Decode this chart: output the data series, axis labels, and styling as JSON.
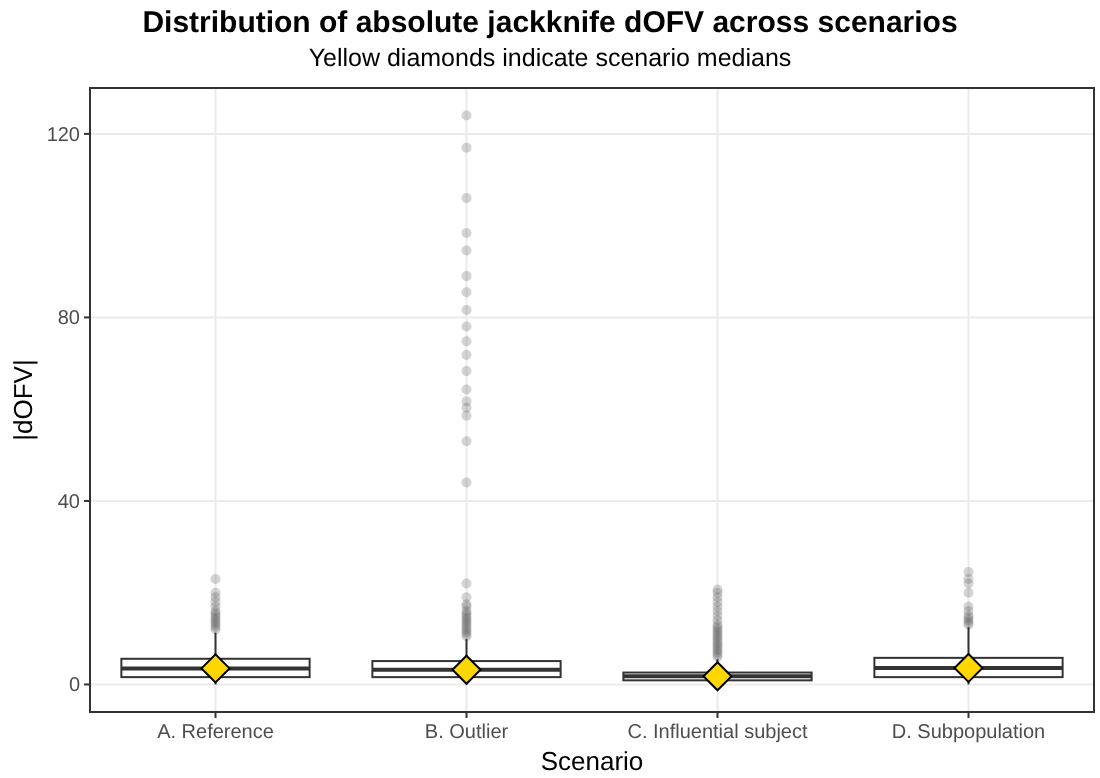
{
  "chart_data": {
    "type": "box",
    "title": "Distribution of absolute jackknife dOFV across scenarios",
    "subtitle": "Yellow diamonds indicate scenario medians",
    "xlabel": "Scenario",
    "ylabel": "|dOFV|",
    "categories": [
      "A. Reference",
      "B. Outlier",
      "C. Influential subject",
      "D. Subpopulation"
    ],
    "ylim": [
      -6,
      130
    ],
    "yticks": [
      0,
      40,
      80,
      120
    ],
    "grid": true,
    "boxes": [
      {
        "low": 0,
        "q1": 1.6,
        "median": 3.5,
        "q3": 5.6,
        "high": 11.3,
        "outliers": [
          12,
          12.5,
          13,
          13.5,
          14,
          14.5,
          15,
          15.5,
          16,
          17,
          18,
          19,
          20,
          23
        ]
      },
      {
        "low": 0,
        "q1": 1.6,
        "median": 3.2,
        "q3": 5.1,
        "high": 9.9,
        "outliers": [
          10.5,
          11,
          11.5,
          12,
          12.5,
          13,
          13.5,
          14,
          14.5,
          15,
          15.5,
          16,
          17,
          17.5,
          19,
          22,
          44,
          53,
          58.6,
          60.3,
          61.7,
          64.3,
          68.3,
          71.8,
          74.8,
          78,
          81.6,
          85.5,
          89,
          94.6,
          98.4,
          106,
          117,
          124
        ]
      },
      {
        "low": 0,
        "q1": 0.9,
        "median": 1.8,
        "q3": 2.6,
        "high": 5.5,
        "outliers": [
          6,
          6.5,
          7,
          7.5,
          8,
          8.5,
          9,
          9.5,
          10,
          10.5,
          11,
          11.5,
          12,
          12.5,
          13,
          14,
          15,
          16,
          17,
          18,
          19,
          20,
          20.7
        ]
      },
      {
        "low": 0,
        "q1": 1.6,
        "median": 3.6,
        "q3": 5.8,
        "high": 12.5,
        "outliers": [
          13,
          13.5,
          14,
          14.5,
          15,
          16,
          17,
          20,
          22,
          23,
          24.5
        ]
      }
    ],
    "series": [
      {
        "type": "scatter",
        "color": "#ffd700",
        "marker": "diamond",
        "x": [
          "A. Reference",
          "B. Outlier",
          "C. Influential subject",
          "D. Subpopulation"
        ],
        "values": [
          3.5,
          3.2,
          1.8,
          3.6
        ]
      }
    ]
  }
}
